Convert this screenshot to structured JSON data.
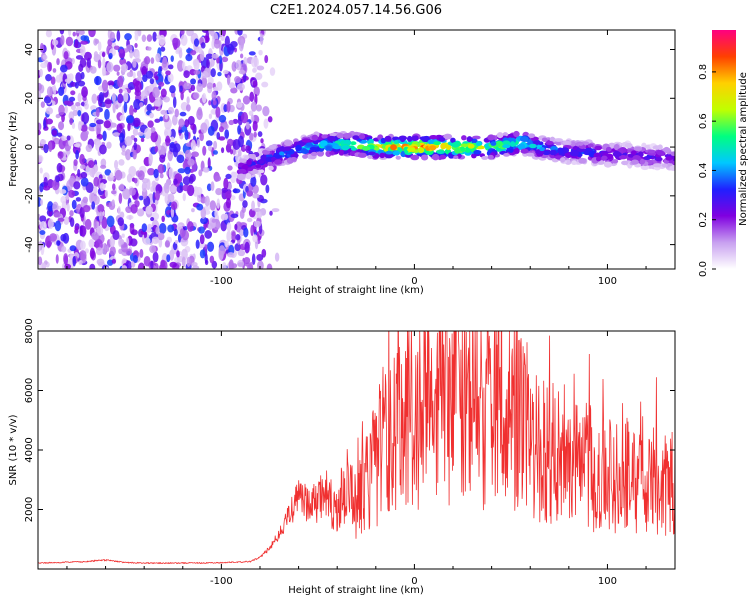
{
  "title": "C2E1.2024.057.14.56.G06",
  "chart_data": [
    {
      "type": "heatmap",
      "title": "C2E1.2024.057.14.56.G06",
      "xlabel": "Height of straight line (km)",
      "ylabel": "Frequency (Hz)",
      "xlim": [
        -195,
        135
      ],
      "ylim": [
        -50,
        48
      ],
      "x_ticks": [
        -100,
        0,
        100
      ],
      "y_ticks": [
        -40,
        -20,
        0,
        20,
        40
      ],
      "colorbar": {
        "label": "Normalized spectral amplitude",
        "range": [
          0,
          0.97
        ],
        "ticks": [
          0.0,
          0.2,
          0.4,
          0.6,
          0.8
        ],
        "colors": [
          "#ffffff",
          "#c8a0f0",
          "#8000e0",
          "#2020ff",
          "#00c8ff",
          "#00ff80",
          "#c0ff00",
          "#ffd000",
          "#ff4000",
          "#ff0080"
        ]
      },
      "noise_region": {
        "x": [
          -195,
          -78
        ],
        "freq": [
          -50,
          48
        ]
      },
      "signal_track": {
        "x": [
          -90,
          -80,
          -70,
          -60,
          -50,
          -40,
          -30,
          -20,
          -10,
          0,
          10,
          20,
          30,
          40,
          50,
          55,
          60,
          70,
          80,
          90,
          100,
          110,
          120,
          130,
          135
        ],
        "freq": [
          -9,
          -6,
          -3,
          -1,
          1,
          1,
          1,
          0,
          0,
          0,
          0,
          0,
          0,
          0,
          1,
          2,
          1,
          -1,
          -2,
          -2,
          -3,
          -3,
          -4,
          -4,
          -5
        ],
        "peak_amplitude": [
          0.3,
          0.35,
          0.45,
          0.5,
          0.55,
          0.6,
          0.75,
          0.8,
          0.85,
          0.95,
          0.9,
          0.85,
          0.8,
          0.7,
          0.65,
          0.7,
          0.55,
          0.45,
          0.4,
          0.4,
          0.35,
          0.3,
          0.35,
          0.3,
          0.3
        ]
      }
    },
    {
      "type": "line",
      "xlabel": "Height of straight line (km)",
      "ylabel": "SNR (10 * v/v)",
      "xlim": [
        -195,
        135
      ],
      "ylim": [
        0,
        8000
      ],
      "x_ticks": [
        -100,
        0,
        100
      ],
      "y_ticks": [
        2000,
        4000,
        6000,
        8000
      ],
      "line_color": "#f03030",
      "series": [
        {
          "x": [
            -195,
            -170,
            -160,
            -150,
            -140,
            -120,
            -100,
            -85,
            -80,
            -75,
            -70,
            -65,
            -60,
            -55,
            -50,
            -45,
            -40,
            -35,
            -30,
            -25,
            -20,
            -15,
            -10,
            -5,
            0,
            5,
            10,
            15,
            20,
            25,
            30,
            35,
            40,
            45,
            50,
            55,
            60,
            65,
            70,
            75,
            80,
            85,
            90,
            95,
            100,
            105,
            110,
            115,
            120,
            125,
            130,
            135
          ],
          "y": [
            200,
            250,
            300,
            220,
            200,
            200,
            210,
            250,
            400,
            700,
            1200,
            1800,
            2400,
            2200,
            2200,
            2600,
            2000,
            2800,
            2000,
            3000,
            3600,
            4400,
            4600,
            5000,
            5200,
            5600,
            5300,
            5700,
            5600,
            5500,
            5400,
            5300,
            5400,
            5500,
            5100,
            5300,
            4700,
            4200,
            3900,
            3900,
            3700,
            3500,
            3500,
            3200,
            3300,
            3000,
            3100,
            2900,
            3000,
            2900,
            2800,
            2900
          ]
        }
      ]
    }
  ]
}
